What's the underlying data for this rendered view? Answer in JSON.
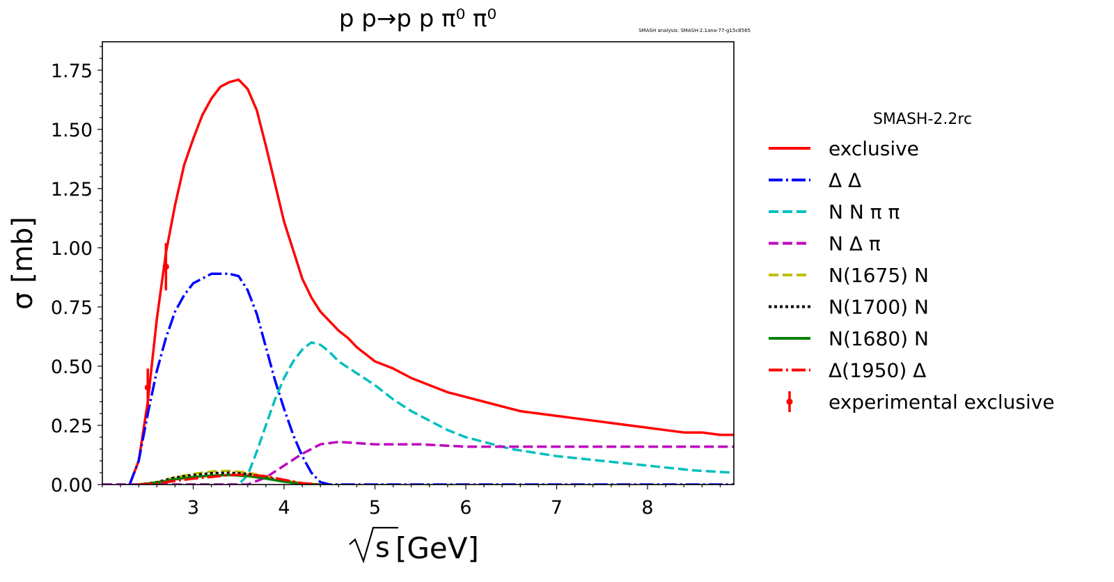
{
  "chart_data": {
    "type": "line",
    "title": "p p→p p π⁰ π⁰",
    "annotation": "SMASH analysis: SMASH-2.1ana-77-g15c8565",
    "xlabel": "[GeV]",
    "xlabel_symbol": "√s",
    "ylabel": "σ [mb]",
    "xlim": [
      2.0,
      8.95
    ],
    "ylim": [
      0,
      1.87
    ],
    "xticks": [
      3,
      4,
      5,
      6,
      7,
      8
    ],
    "yticks": [
      0.0,
      0.25,
      0.5,
      0.75,
      1.0,
      1.25,
      1.5,
      1.75
    ],
    "ytick_labels": [
      "0.00",
      "0.25",
      "0.50",
      "0.75",
      "1.00",
      "1.25",
      "1.50",
      "1.75"
    ],
    "grid": false,
    "legend_title": "SMASH-2.2rc",
    "legend_position": "right, outside plot",
    "series": [
      {
        "name": "exclusive",
        "color": "#ff0000",
        "style": "solid",
        "x": [
          2.3,
          2.4,
          2.5,
          2.6,
          2.7,
          2.8,
          2.9,
          3.0,
          3.1,
          3.2,
          3.3,
          3.4,
          3.5,
          3.6,
          3.7,
          3.8,
          3.9,
          4.0,
          4.1,
          4.2,
          4.3,
          4.4,
          4.5,
          4.6,
          4.7,
          4.8,
          4.9,
          5.0,
          5.2,
          5.4,
          5.6,
          5.8,
          6.0,
          6.2,
          6.4,
          6.6,
          6.8,
          7.0,
          7.2,
          7.4,
          7.6,
          7.8,
          8.0,
          8.2,
          8.4,
          8.6,
          8.8,
          8.95
        ],
        "y": [
          0.0,
          0.1,
          0.35,
          0.7,
          0.98,
          1.18,
          1.35,
          1.46,
          1.56,
          1.63,
          1.68,
          1.7,
          1.71,
          1.67,
          1.58,
          1.43,
          1.27,
          1.11,
          0.99,
          0.87,
          0.79,
          0.73,
          0.69,
          0.65,
          0.62,
          0.58,
          0.55,
          0.52,
          0.49,
          0.45,
          0.42,
          0.39,
          0.37,
          0.35,
          0.33,
          0.31,
          0.3,
          0.29,
          0.28,
          0.27,
          0.26,
          0.25,
          0.24,
          0.23,
          0.22,
          0.22,
          0.21,
          0.21
        ]
      },
      {
        "name": "Δ Δ",
        "color": "#0000ff",
        "style": "dashdot",
        "x": [
          2.3,
          2.4,
          2.5,
          2.6,
          2.7,
          2.8,
          2.9,
          3.0,
          3.1,
          3.2,
          3.3,
          3.4,
          3.5,
          3.6,
          3.7,
          3.8,
          3.9,
          4.0,
          4.1,
          4.2,
          4.3,
          4.4,
          4.5,
          4.6,
          5.0,
          6.0,
          7.0,
          8.0,
          8.95
        ],
        "y": [
          0.0,
          0.1,
          0.3,
          0.48,
          0.62,
          0.73,
          0.8,
          0.85,
          0.87,
          0.89,
          0.89,
          0.89,
          0.88,
          0.82,
          0.72,
          0.58,
          0.44,
          0.32,
          0.21,
          0.12,
          0.05,
          0.01,
          0.0,
          0.0,
          0.0,
          0.0,
          0.0,
          0.0,
          0.0
        ]
      },
      {
        "name": "N N π π",
        "color": "#00bfbf",
        "style": "dashed",
        "x": [
          2.0,
          3.5,
          3.6,
          3.7,
          3.8,
          3.9,
          4.0,
          4.1,
          4.2,
          4.3,
          4.4,
          4.5,
          4.6,
          4.8,
          5.0,
          5.2,
          5.4,
          5.6,
          5.8,
          6.0,
          6.5,
          7.0,
          7.5,
          8.0,
          8.5,
          8.95
        ],
        "y": [
          0.0,
          0.0,
          0.04,
          0.14,
          0.25,
          0.36,
          0.45,
          0.52,
          0.57,
          0.6,
          0.59,
          0.56,
          0.52,
          0.47,
          0.42,
          0.36,
          0.31,
          0.27,
          0.23,
          0.2,
          0.15,
          0.12,
          0.1,
          0.08,
          0.06,
          0.05
        ]
      },
      {
        "name": "N Δ π",
        "color": "#bf00bf",
        "style": "dashed",
        "x": [
          2.0,
          3.6,
          3.8,
          4.0,
          4.2,
          4.4,
          4.6,
          5.0,
          5.5,
          6.0,
          6.5,
          7.0,
          7.5,
          8.0,
          8.5,
          8.95
        ],
        "y": [
          0.0,
          0.0,
          0.03,
          0.08,
          0.13,
          0.17,
          0.18,
          0.17,
          0.17,
          0.16,
          0.16,
          0.16,
          0.16,
          0.16,
          0.16,
          0.16
        ]
      },
      {
        "name": "N(1675) N",
        "color": "#bfbf00",
        "style": "dashed",
        "x": [
          2.4,
          2.6,
          2.8,
          3.0,
          3.2,
          3.4,
          3.6,
          3.8,
          4.0,
          4.2,
          4.4
        ],
        "y": [
          0.0,
          0.01,
          0.03,
          0.045,
          0.055,
          0.058,
          0.05,
          0.035,
          0.018,
          0.005,
          0.0
        ]
      },
      {
        "name": "N(1700) N",
        "color": "#000000",
        "style": "dotted",
        "x": [
          2.4,
          2.6,
          2.8,
          3.0,
          3.2,
          3.4,
          3.6,
          3.8,
          4.0,
          4.2,
          4.4
        ],
        "y": [
          0.0,
          0.01,
          0.03,
          0.04,
          0.048,
          0.05,
          0.045,
          0.03,
          0.015,
          0.004,
          0.0
        ]
      },
      {
        "name": "N(1680) N",
        "color": "#008000",
        "style": "solid",
        "x": [
          2.4,
          2.6,
          2.8,
          3.0,
          3.2,
          3.4,
          3.6,
          3.8,
          4.0,
          4.2,
          4.4
        ],
        "y": [
          0.0,
          0.008,
          0.022,
          0.032,
          0.038,
          0.04,
          0.036,
          0.025,
          0.012,
          0.003,
          0.0
        ]
      },
      {
        "name": "Δ(1950) Δ",
        "color": "#ff0000",
        "style": "dashdot",
        "x": [
          2.4,
          2.6,
          2.8,
          3.0,
          3.2,
          3.4,
          3.6,
          3.8,
          4.0,
          4.2,
          4.4
        ],
        "y": [
          0.0,
          0.005,
          0.015,
          0.025,
          0.032,
          0.04,
          0.042,
          0.035,
          0.02,
          0.006,
          0.0
        ]
      }
    ],
    "experimental": {
      "name": "experimental exclusive",
      "color": "#ff0000",
      "points": [
        {
          "x": 2.5,
          "y": 0.41,
          "err": 0.08
        },
        {
          "x": 2.7,
          "y": 0.92,
          "err": 0.1
        }
      ]
    }
  }
}
